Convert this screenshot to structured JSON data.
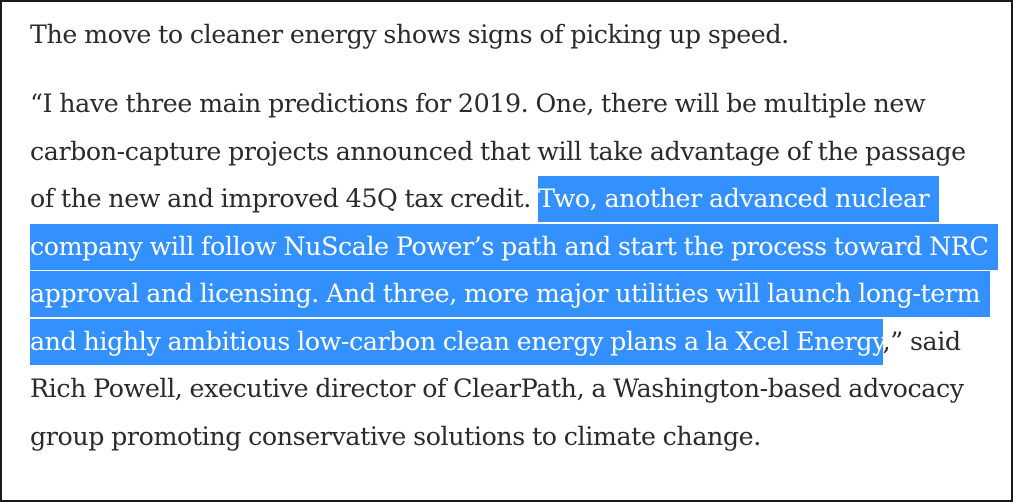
{
  "article": {
    "lead": "The move to cleaner energy shows signs of picking up speed.",
    "quote_lines": [
      {
        "text": "“I have three main predictions for 2019. One, there will be multiple new"
      },
      {
        "text": "carbon-capture projects announced that will take advantage of the passage"
      },
      {
        "before": "of the new and improved 45Q tax credit. ",
        "selected": "Two, another advanced nuclear"
      },
      {
        "selected": "company will follow NuScale Power’s path and start the process toward NRC"
      },
      {
        "selected": "approval and licensing. And three, more major utilities will launch long-term"
      },
      {
        "selected": "and highly ambitious low-carbon clean energy plans a la Xcel Energy",
        "after": ",” said"
      },
      {
        "text": "Rich Powell, executive director of ClearPath, a Washington-based advocacy"
      },
      {
        "text": "group promoting conservative solutions to climate change."
      }
    ]
  },
  "selection": {
    "highlight_color": "#3390ff",
    "text_color": "#ffffff"
  }
}
